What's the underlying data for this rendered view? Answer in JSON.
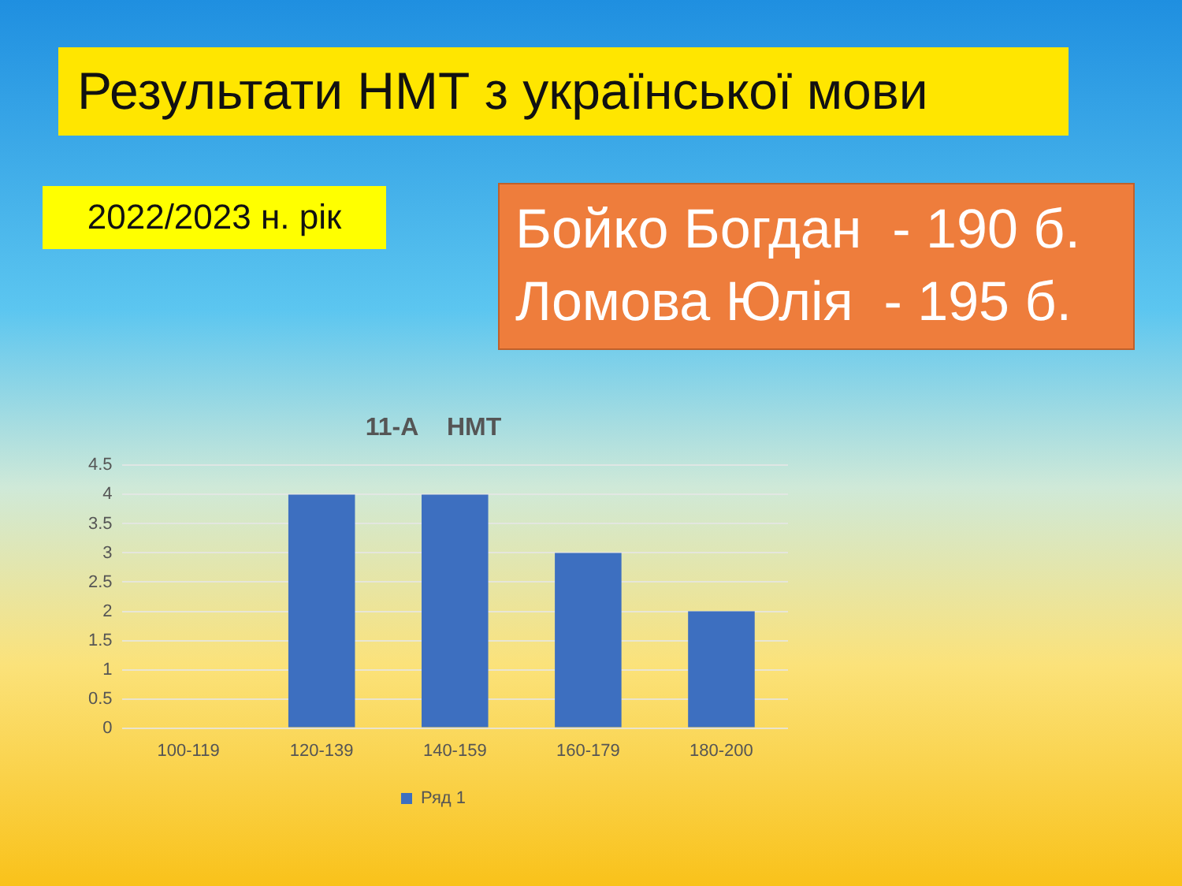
{
  "chart_data": {
    "type": "bar",
    "title": "Результати НМТ з української мови",
    "subtitle": "11-А    НМТ",
    "annotations": [
      "2022/2023 н. рік",
      "Бойко Богдан  - 190 б.",
      "Ломова Юлія  - 195 б."
    ],
    "categories": [
      "100-119",
      "120-139",
      "140-159",
      "160-179",
      "180-200"
    ],
    "series": [
      {
        "name": "Ряд 1",
        "color": "#3d6fc0",
        "values": [
          0,
          4,
          4,
          3,
          2
        ]
      }
    ],
    "ylim": [
      0,
      4.5
    ],
    "yticks": [
      0,
      0.5,
      1,
      1.5,
      2,
      2.5,
      3,
      3.5,
      4,
      4.5
    ],
    "grid": "y",
    "legend": "bottom"
  }
}
